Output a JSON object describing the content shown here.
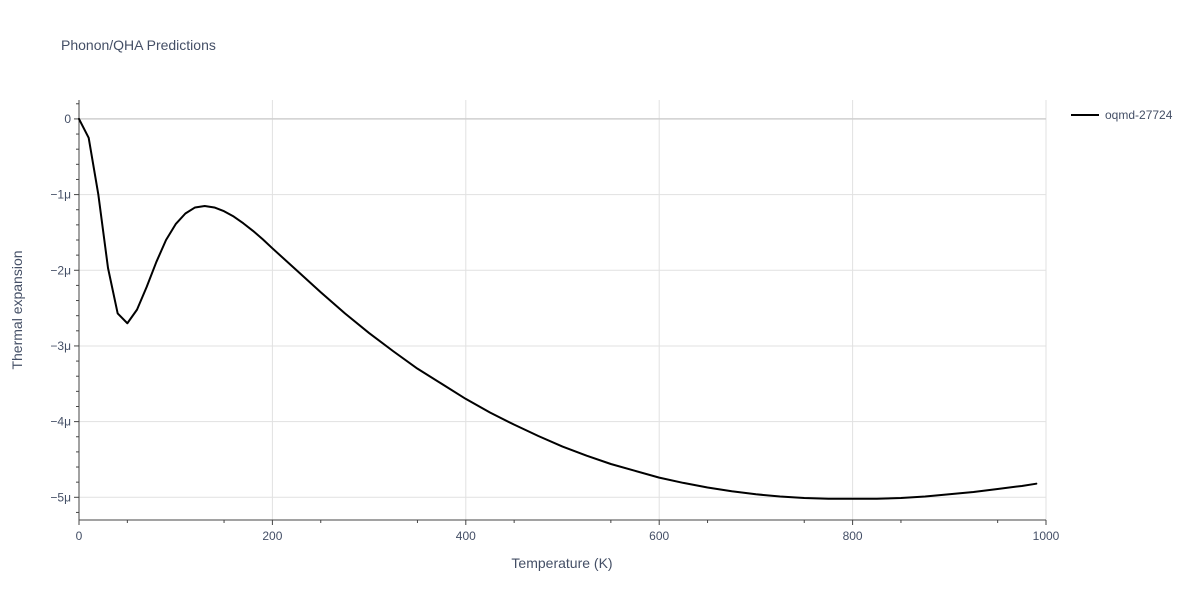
{
  "chart_data": {
    "type": "line",
    "title": "Phonon/QHA Predictions",
    "xlabel": "Temperature (K)",
    "ylabel": "Thermal expansion",
    "xlim": [
      0,
      1000
    ],
    "ylim": [
      -5.3,
      0.25
    ],
    "xticks": [
      0,
      200,
      400,
      600,
      800,
      1000
    ],
    "xtick_labels": [
      "0",
      "200",
      "400",
      "600",
      "800",
      "1000"
    ],
    "yticks": [
      0,
      -1,
      -2,
      -3,
      -4,
      -5
    ],
    "ytick_labels": [
      "0",
      "−1μ",
      "−2μ",
      "−3μ",
      "−4μ",
      "−5μ"
    ],
    "y_unit_multiplier": 1e-06,
    "grid": true,
    "legend_position": "top-right",
    "series": [
      {
        "name": "oqmd-27724",
        "color": "#000000",
        "x": [
          0,
          10,
          20,
          30,
          40,
          50,
          60,
          70,
          80,
          90,
          100,
          110,
          120,
          130,
          140,
          150,
          160,
          170,
          180,
          190,
          200,
          225,
          250,
          275,
          300,
          325,
          350,
          375,
          400,
          425,
          450,
          475,
          500,
          525,
          550,
          575,
          600,
          625,
          650,
          675,
          700,
          725,
          750,
          775,
          800,
          825,
          850,
          875,
          900,
          925,
          950,
          975,
          990
        ],
        "y": [
          0,
          -0.25,
          -1.0,
          -1.97,
          -2.57,
          -2.7,
          -2.52,
          -2.22,
          -1.89,
          -1.6,
          -1.39,
          -1.25,
          -1.17,
          -1.15,
          -1.17,
          -1.22,
          -1.29,
          -1.38,
          -1.48,
          -1.59,
          -1.71,
          -2.0,
          -2.29,
          -2.57,
          -2.83,
          -3.07,
          -3.3,
          -3.5,
          -3.7,
          -3.88,
          -4.04,
          -4.19,
          -4.33,
          -4.45,
          -4.56,
          -4.65,
          -4.74,
          -4.81,
          -4.87,
          -4.92,
          -4.96,
          -4.99,
          -5.01,
          -5.02,
          -5.02,
          -5.02,
          -5.01,
          -4.99,
          -4.96,
          -4.93,
          -4.89,
          -4.85,
          -4.82
        ]
      }
    ]
  }
}
